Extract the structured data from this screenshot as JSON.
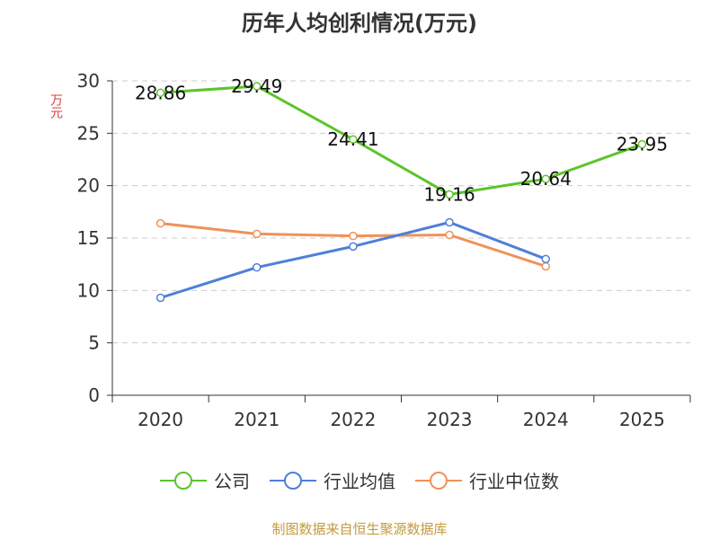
{
  "chart_data": {
    "type": "line",
    "title": "历年人均创利情况(万元)",
    "ylabel": "万元",
    "xlabel": "",
    "categories": [
      "2020",
      "2021",
      "2022",
      "2023",
      "2024",
      "2025"
    ],
    "ylim": [
      0,
      30
    ],
    "yticks": [
      0,
      5,
      10,
      15,
      20,
      25,
      30
    ],
    "grid": true,
    "legend_position": "bottom",
    "series": [
      {
        "name": "公司",
        "color": "#5cc42a",
        "values": [
          28.86,
          29.49,
          24.41,
          19.16,
          20.64,
          23.95
        ],
        "labels": [
          "28.86",
          "29.49",
          "24.41",
          "19.16",
          "20.64",
          "23.95"
        ]
      },
      {
        "name": "行业均值",
        "color": "#4f7fd8",
        "values": [
          9.3,
          12.2,
          14.2,
          16.5,
          13.0,
          null
        ]
      },
      {
        "name": "行业中位数",
        "color": "#f0915a",
        "values": [
          16.4,
          15.4,
          15.2,
          15.3,
          12.3,
          null
        ]
      }
    ]
  },
  "footer": {
    "source": "制图数据来自恒生聚源数据库"
  }
}
